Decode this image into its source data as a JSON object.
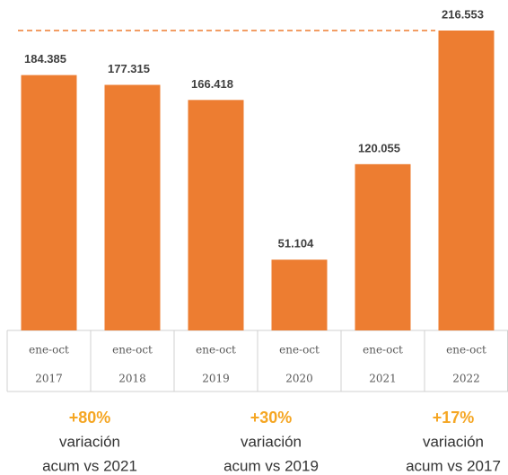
{
  "chart_data": {
    "type": "bar",
    "categories": [
      [
        "ene-oct",
        "2017"
      ],
      [
        "ene-oct",
        "2018"
      ],
      [
        "ene-oct",
        "2019"
      ],
      [
        "ene-oct",
        "2020"
      ],
      [
        "ene-oct",
        "2021"
      ],
      [
        "ene-oct",
        "2022"
      ]
    ],
    "values": [
      184385,
      177315,
      166418,
      51104,
      120055,
      216553
    ],
    "value_labels": [
      "184.385",
      "177.315",
      "166.418",
      "51.104",
      "120.055",
      "216.553"
    ],
    "color": "#ed7d31",
    "annotations": [
      [
        "+80%",
        "variación",
        "acum vs 2021"
      ],
      [
        "+30%",
        "variación",
        "acum vs 2019"
      ],
      [
        "+17%",
        "variación",
        "acum vs 2017"
      ]
    ]
  }
}
